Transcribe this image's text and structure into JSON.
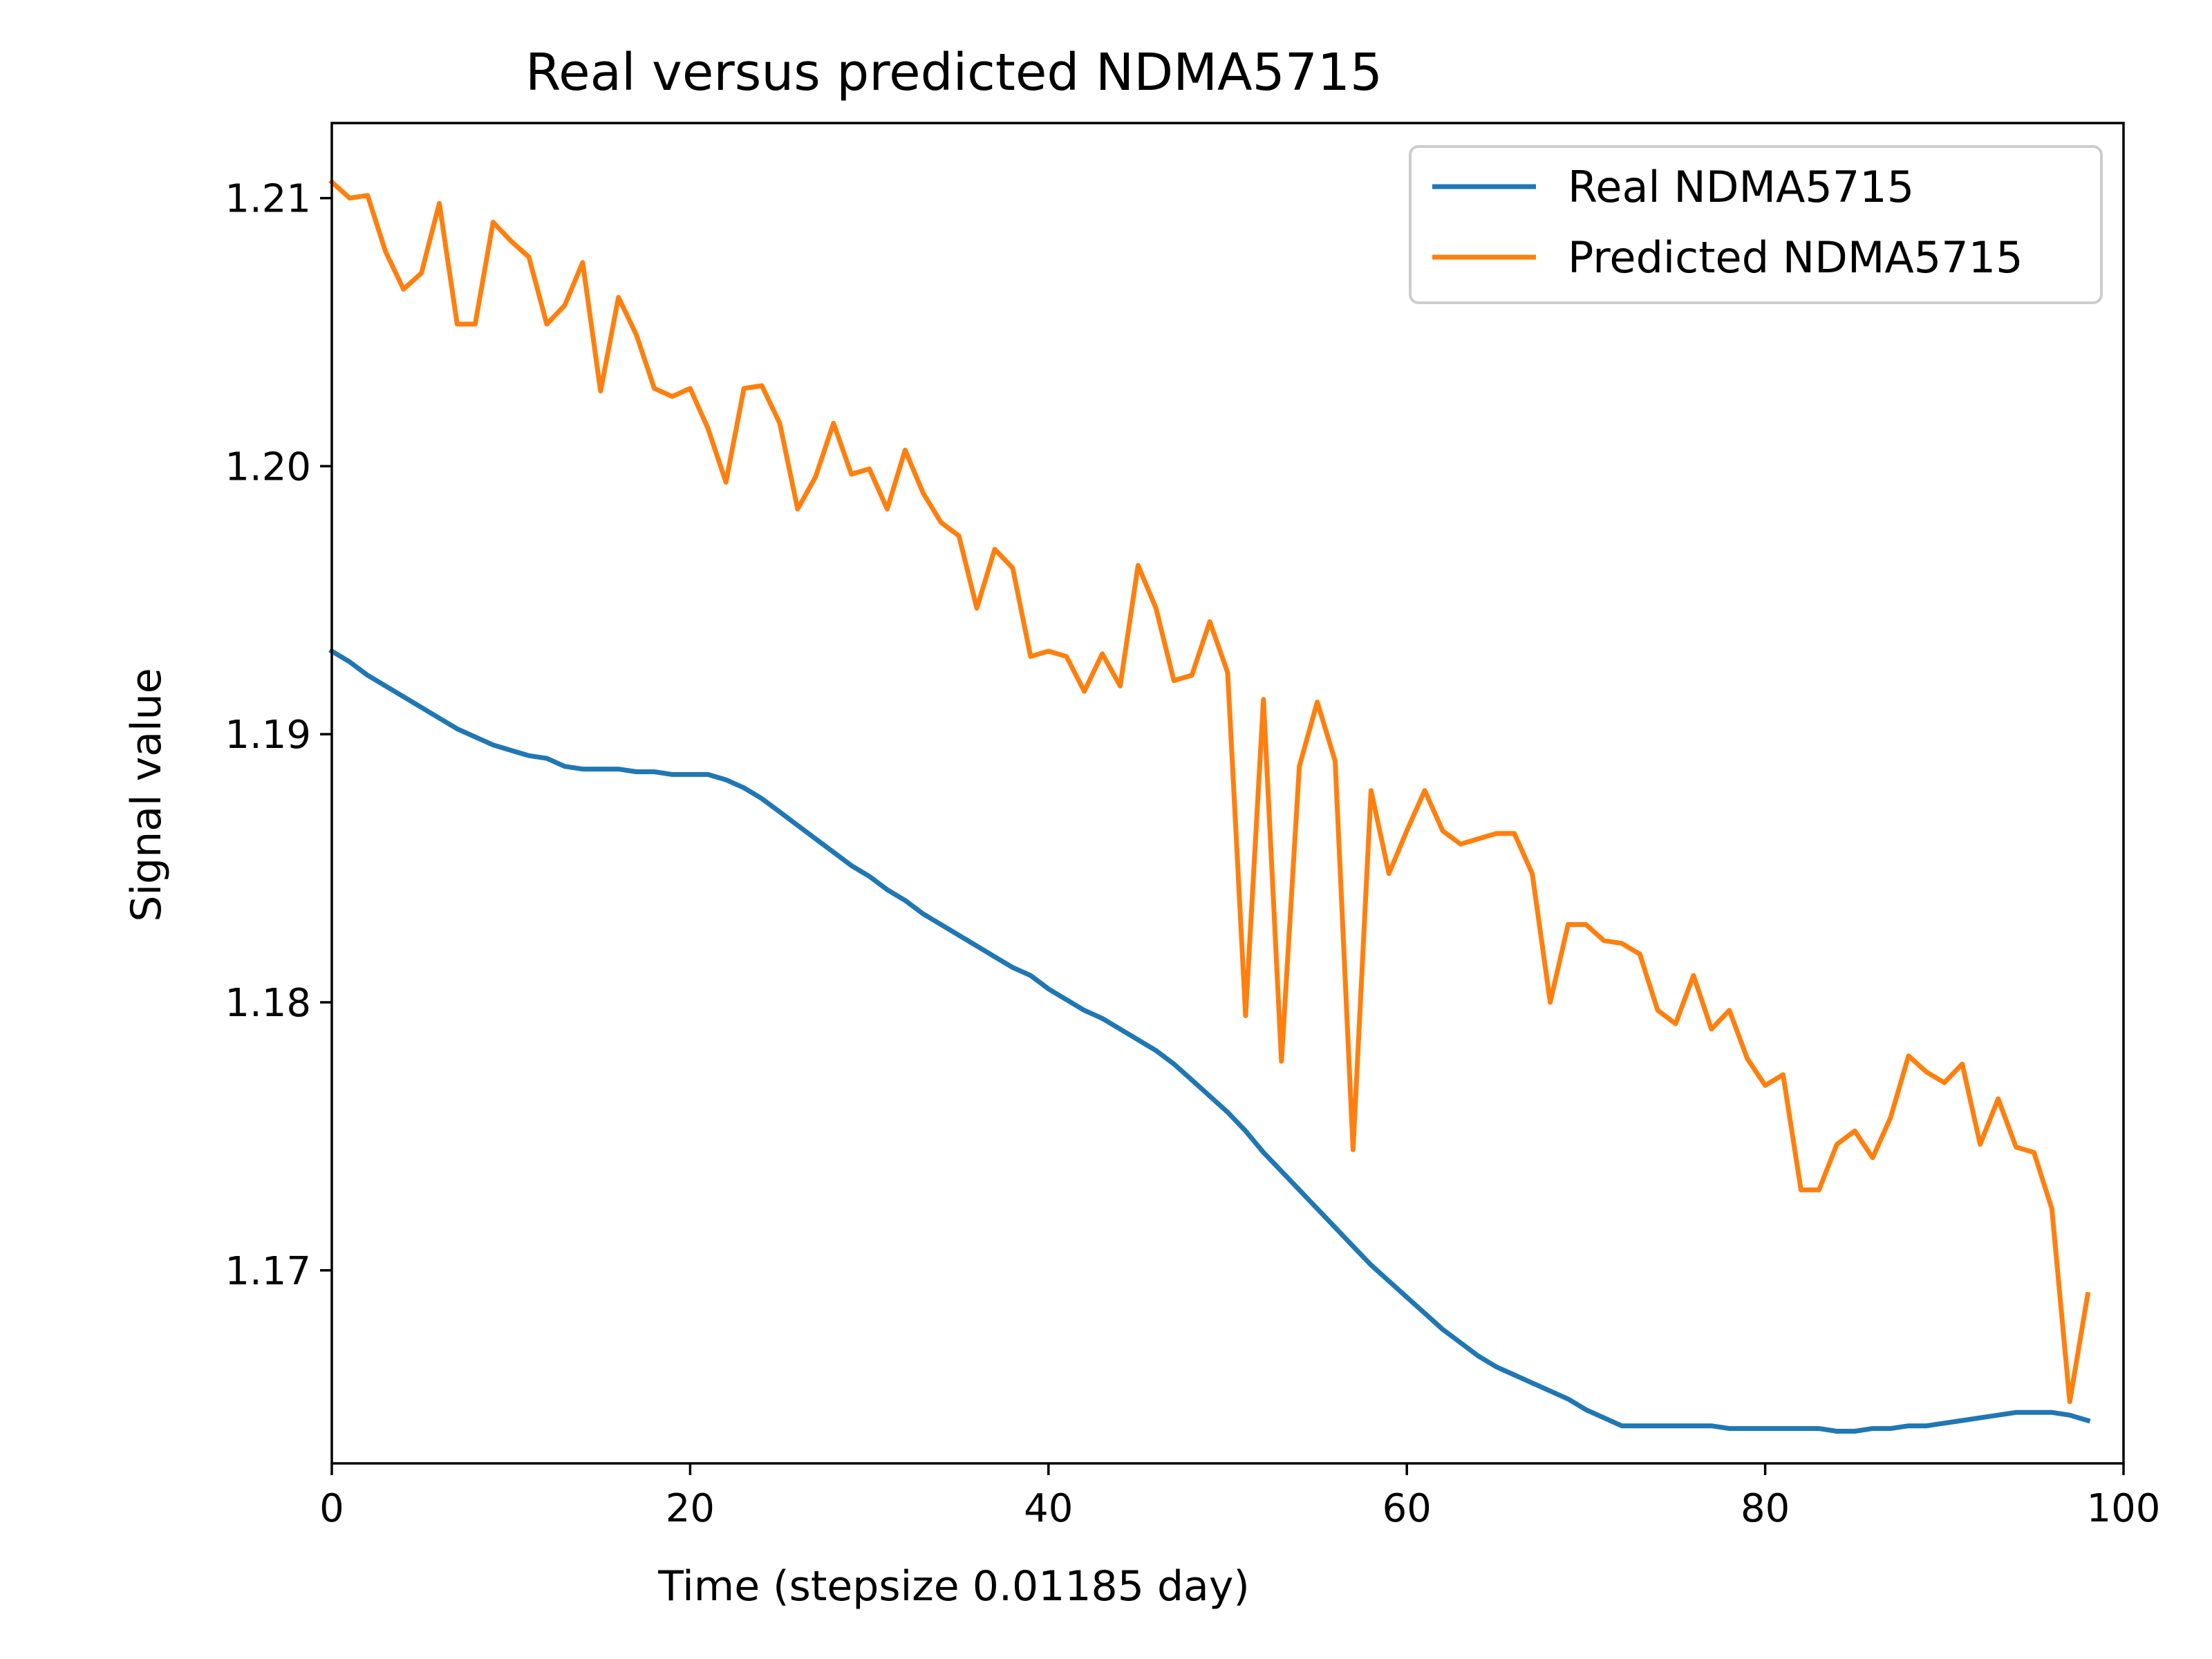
{
  "chart_data": {
    "type": "line",
    "title": "Real versus predicted NDMA5715",
    "xlabel": "Time (stepsize 0.01185 day)",
    "ylabel": "Signal value",
    "xlim": [
      0,
      100
    ],
    "ylim": [
      1.1628,
      1.2128
    ],
    "xticks": [
      0,
      20,
      40,
      60,
      80,
      100
    ],
    "xtick_labels": [
      "0",
      "20",
      "40",
      "60",
      "80",
      "100"
    ],
    "yticks": [
      1.17,
      1.18,
      1.19,
      1.2,
      1.21
    ],
    "ytick_labels": [
      "1.17",
      "1.18",
      "1.19",
      "1.20",
      "1.21"
    ],
    "grid": false,
    "legend_position": "top-right",
    "series": [
      {
        "name": "Real NDMA5715",
        "color": "#1f77b4",
        "x": [
          0,
          1,
          2,
          3,
          4,
          5,
          6,
          7,
          8,
          9,
          10,
          11,
          12,
          13,
          14,
          15,
          16,
          17,
          18,
          19,
          20,
          21,
          22,
          23,
          24,
          25,
          26,
          27,
          28,
          29,
          30,
          31,
          32,
          33,
          34,
          35,
          36,
          37,
          38,
          39,
          40,
          41,
          42,
          43,
          44,
          45,
          46,
          47,
          48,
          49,
          50,
          51,
          52,
          53,
          54,
          55,
          56,
          57,
          58,
          59,
          60,
          61,
          62,
          63,
          64,
          65,
          66,
          67,
          68,
          69,
          70,
          71,
          72,
          73,
          74,
          75,
          76,
          77,
          78,
          79,
          80,
          81,
          82,
          83,
          84,
          85,
          86,
          87,
          88,
          89,
          90,
          91,
          92,
          93,
          94,
          95,
          96,
          97,
          98
        ],
        "values": [
          1.1931,
          1.1927,
          1.1922,
          1.1918,
          1.1914,
          1.191,
          1.1906,
          1.1902,
          1.1899,
          1.1896,
          1.1894,
          1.1892,
          1.1891,
          1.1888,
          1.1887,
          1.1887,
          1.1887,
          1.1886,
          1.1886,
          1.1885,
          1.1885,
          1.1885,
          1.1883,
          1.188,
          1.1876,
          1.1871,
          1.1866,
          1.1861,
          1.1856,
          1.1851,
          1.1847,
          1.1842,
          1.1838,
          1.1833,
          1.1829,
          1.1825,
          1.1821,
          1.1817,
          1.1813,
          1.181,
          1.1805,
          1.1801,
          1.1797,
          1.1794,
          1.179,
          1.1786,
          1.1782,
          1.1777,
          1.1771,
          1.1765,
          1.1759,
          1.1752,
          1.1744,
          1.1737,
          1.173,
          1.1723,
          1.1716,
          1.1709,
          1.1702,
          1.1696,
          1.169,
          1.1684,
          1.1678,
          1.1673,
          1.1668,
          1.1664,
          1.1661,
          1.1658,
          1.1655,
          1.1652,
          1.1648,
          1.1645,
          1.1642,
          1.1642,
          1.1642,
          1.1642,
          1.1642,
          1.1642,
          1.1641,
          1.1641,
          1.1641,
          1.1641,
          1.1641,
          1.1641,
          1.164,
          1.164,
          1.1641,
          1.1641,
          1.1642,
          1.1642,
          1.1643,
          1.1644,
          1.1645,
          1.1646,
          1.1647,
          1.1647,
          1.1647,
          1.1646,
          1.1644
        ]
      },
      {
        "name": "Predicted NDMA5715",
        "color": "#ff7f0e",
        "x": [
          0,
          1,
          2,
          3,
          4,
          5,
          6,
          7,
          8,
          9,
          10,
          11,
          12,
          13,
          14,
          15,
          16,
          17,
          18,
          19,
          20,
          21,
          22,
          23,
          24,
          25,
          26,
          27,
          28,
          29,
          30,
          31,
          32,
          33,
          34,
          35,
          36,
          37,
          38,
          39,
          40,
          41,
          42,
          43,
          44,
          45,
          46,
          47,
          48,
          49,
          50,
          51,
          52,
          53,
          54,
          55,
          56,
          57,
          58,
          59,
          60,
          61,
          62,
          63,
          64,
          65,
          66,
          67,
          68,
          69,
          70,
          71,
          72,
          73,
          74,
          75,
          76,
          77,
          78,
          79,
          80,
          81,
          82,
          83,
          84,
          85,
          86,
          87,
          88,
          89,
          90,
          91,
          92,
          93,
          94,
          95,
          96,
          97,
          98
        ],
        "values": [
          1.2106,
          1.21,
          1.2101,
          1.208,
          1.2066,
          1.2072,
          1.2098,
          1.2053,
          1.2053,
          1.2091,
          1.2084,
          1.2078,
          1.2053,
          1.206,
          1.2076,
          1.2028,
          1.2063,
          1.2049,
          1.2029,
          1.2026,
          1.2029,
          1.2014,
          1.1994,
          1.2029,
          1.203,
          1.2016,
          1.1984,
          1.1996,
          1.2016,
          1.1997,
          1.1999,
          1.1984,
          1.2006,
          1.199,
          1.1979,
          1.1974,
          1.1947,
          1.1969,
          1.1962,
          1.1929,
          1.1931,
          1.1929,
          1.1916,
          1.193,
          1.1918,
          1.1963,
          1.1947,
          1.192,
          1.1922,
          1.1942,
          1.1923,
          1.1795,
          1.1913,
          1.1778,
          1.1888,
          1.1912,
          1.189,
          1.1745,
          1.1879,
          1.1848,
          1.1864,
          1.1879,
          1.1864,
          1.1859,
          1.1861,
          1.1863,
          1.1863,
          1.1848,
          1.18,
          1.1829,
          1.1829,
          1.1823,
          1.1822,
          1.1818,
          1.1797,
          1.1792,
          1.181,
          1.179,
          1.1797,
          1.1779,
          1.1769,
          1.1773,
          1.173,
          1.173,
          1.1747,
          1.1752,
          1.1742,
          1.1757,
          1.178,
          1.1774,
          1.177,
          1.1777,
          1.1747,
          1.1764,
          1.1746,
          1.1744,
          1.1723,
          1.1651,
          1.1691
        ]
      }
    ]
  }
}
